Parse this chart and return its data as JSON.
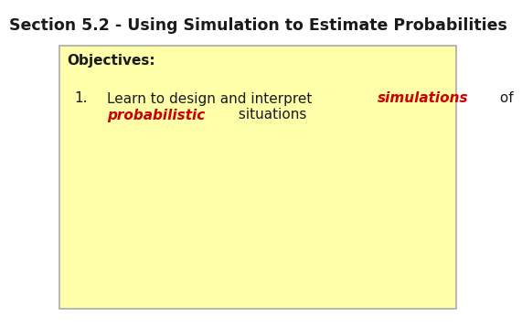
{
  "title": "Section 5.2 - Using Simulation to Estimate Probabilities",
  "title_color": "#1a1a1a",
  "title_fontsize": 12.5,
  "title_bold": true,
  "box_bg_color": "#ffffaa",
  "box_border_color": "#aaaaaa",
  "objectives_label": "Objectives:",
  "objectives_fontsize": 11,
  "objectives_color": "#1a1a1a",
  "item_number": "1.",
  "item_fontsize": 11,
  "bg_color": "#ffffff",
  "red_color": "#cc0000",
  "black_color": "#1a1a1a"
}
